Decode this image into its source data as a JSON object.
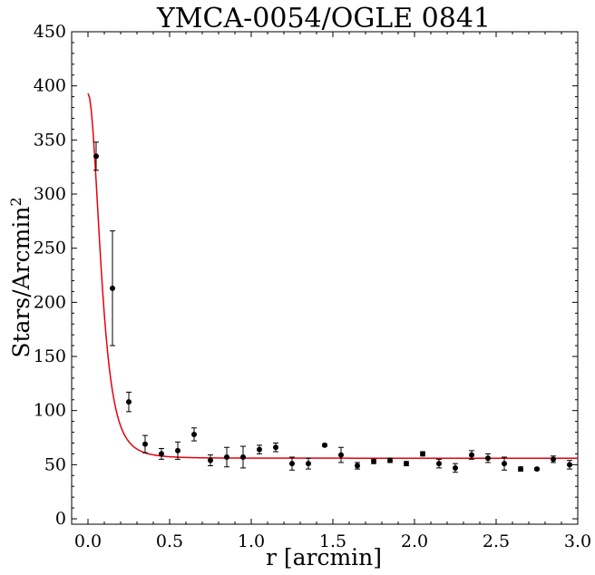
{
  "chart_data": {
    "type": "scatter",
    "title": "YMCA-0054/OGLE 0841",
    "xlabel": "r [arcmin]",
    "ylabel_main": "Stars/Arcmin",
    "ylabel_sup": "2",
    "xlim": [
      -0.1,
      3.0
    ],
    "ylim": [
      -5,
      450
    ],
    "xticks": [
      0.0,
      0.5,
      1.0,
      1.5,
      2.0,
      2.5,
      3.0
    ],
    "xtick_labels": [
      "0.0",
      "0.5",
      "1.0",
      "1.5",
      "2.0",
      "2.5",
      "3.0"
    ],
    "yticks": [
      0,
      50,
      100,
      150,
      200,
      250,
      300,
      350,
      400,
      450
    ],
    "ytick_labels": [
      "0",
      "50",
      "100",
      "150",
      "200",
      "250",
      "300",
      "350",
      "400",
      "450"
    ],
    "grid": false,
    "points": [
      {
        "x": 0.05,
        "y": 335,
        "err": 13
      },
      {
        "x": 0.15,
        "y": 213,
        "err": 53
      },
      {
        "x": 0.25,
        "y": 108,
        "err": 9
      },
      {
        "x": 0.35,
        "y": 69,
        "err": 8
      },
      {
        "x": 0.45,
        "y": 60,
        "err": 5
      },
      {
        "x": 0.55,
        "y": 63,
        "err": 8
      },
      {
        "x": 0.65,
        "y": 78,
        "err": 6
      },
      {
        "x": 0.75,
        "y": 54,
        "err": 5
      },
      {
        "x": 0.85,
        "y": 57,
        "err": 9
      },
      {
        "x": 0.95,
        "y": 57,
        "err": 10
      },
      {
        "x": 1.05,
        "y": 64,
        "err": 4
      },
      {
        "x": 1.15,
        "y": 66,
        "err": 4
      },
      {
        "x": 1.25,
        "y": 51,
        "err": 6
      },
      {
        "x": 1.35,
        "y": 51,
        "err": 5
      },
      {
        "x": 1.45,
        "y": 68,
        "err": 1
      },
      {
        "x": 1.55,
        "y": 59,
        "err": 7
      },
      {
        "x": 1.65,
        "y": 49,
        "err": 3
      },
      {
        "x": 1.75,
        "y": 53,
        "err": 2
      },
      {
        "x": 1.85,
        "y": 54,
        "err": 2
      },
      {
        "x": 1.95,
        "y": 51,
        "err": 2
      },
      {
        "x": 2.05,
        "y": 60,
        "err": 2
      },
      {
        "x": 2.15,
        "y": 51,
        "err": 4
      },
      {
        "x": 2.25,
        "y": 47,
        "err": 4
      },
      {
        "x": 2.35,
        "y": 59,
        "err": 4
      },
      {
        "x": 2.45,
        "y": 56,
        "err": 4
      },
      {
        "x": 2.55,
        "y": 51,
        "err": 6
      },
      {
        "x": 2.65,
        "y": 46,
        "err": 2
      },
      {
        "x": 2.75,
        "y": 46,
        "err": 1
      },
      {
        "x": 2.85,
        "y": 55,
        "err": 3
      },
      {
        "x": 2.95,
        "y": 50,
        "err": 4
      }
    ],
    "fit": {
      "type": "king-like profile",
      "background": 56,
      "peak": 337,
      "core_radius": 0.13,
      "color": "#e8000b"
    },
    "point_color": "#000000"
  }
}
